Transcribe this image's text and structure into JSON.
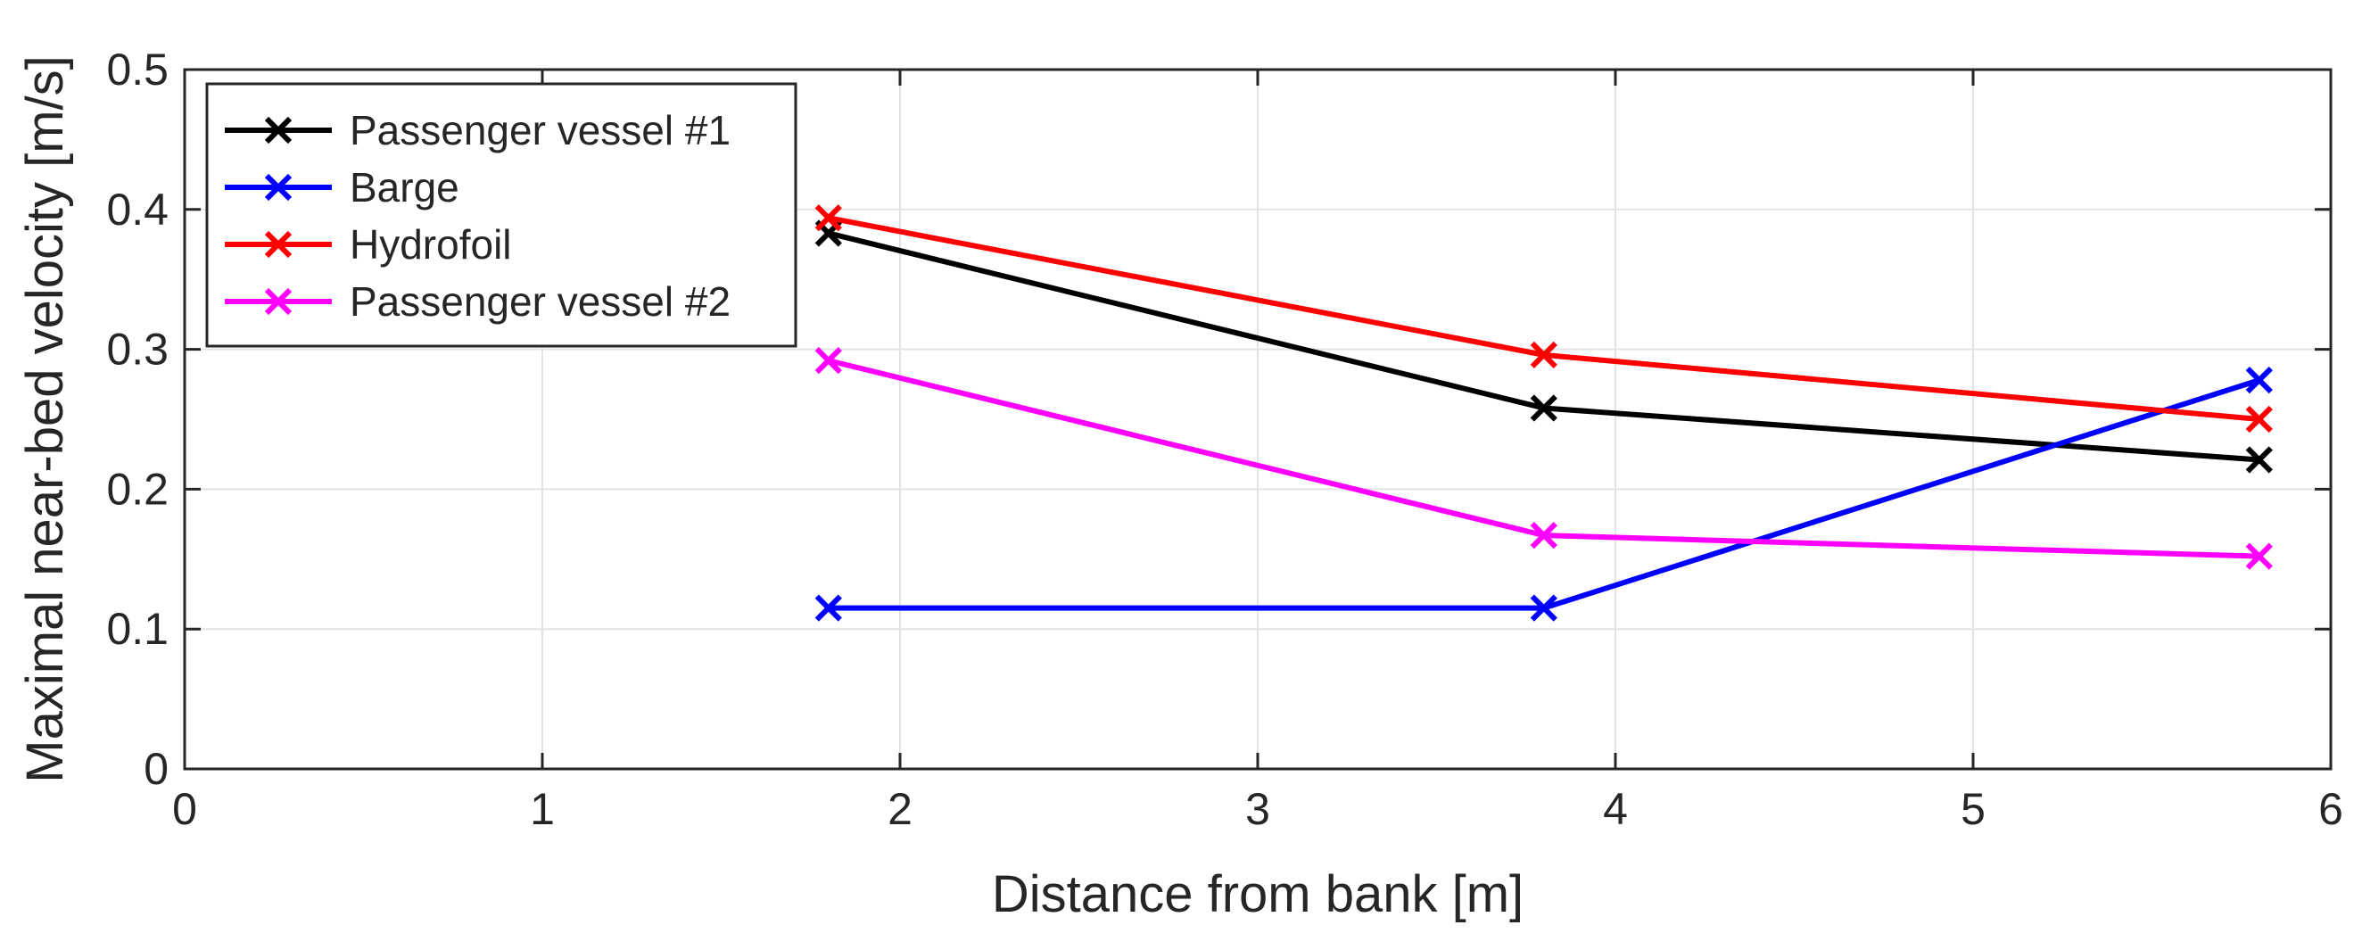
{
  "chart_data": {
    "type": "line",
    "xlabel": "Distance from bank [m]",
    "ylabel": "Maximal near-bed velocity [m/s]",
    "xlim": [
      0,
      6
    ],
    "ylim": [
      0,
      0.5
    ],
    "xticks": [
      "0",
      "1",
      "2",
      "3",
      "4",
      "5",
      "6"
    ],
    "yticks": [
      "0",
      "0.1",
      "0.2",
      "0.3",
      "0.4",
      "0.5"
    ],
    "grid": true,
    "legend_position": "top-left",
    "marker": "x",
    "series": [
      {
        "name": "Passenger vessel #1",
        "color": "#000000",
        "x": [
          1.8,
          3.8,
          5.8
        ],
        "y": [
          0.383,
          0.258,
          0.221
        ]
      },
      {
        "name": "Barge",
        "color": "#0000ff",
        "x": [
          1.8,
          3.8,
          5.8
        ],
        "y": [
          0.115,
          0.115,
          0.278
        ]
      },
      {
        "name": "Hydrofoil",
        "color": "#ff0000",
        "x": [
          1.8,
          3.8,
          5.8
        ],
        "y": [
          0.394,
          0.296,
          0.25
        ]
      },
      {
        "name": "Passenger vessel #2",
        "color": "#ff00ff",
        "x": [
          1.8,
          3.8,
          5.8
        ],
        "y": [
          0.292,
          0.167,
          0.152
        ]
      }
    ]
  }
}
